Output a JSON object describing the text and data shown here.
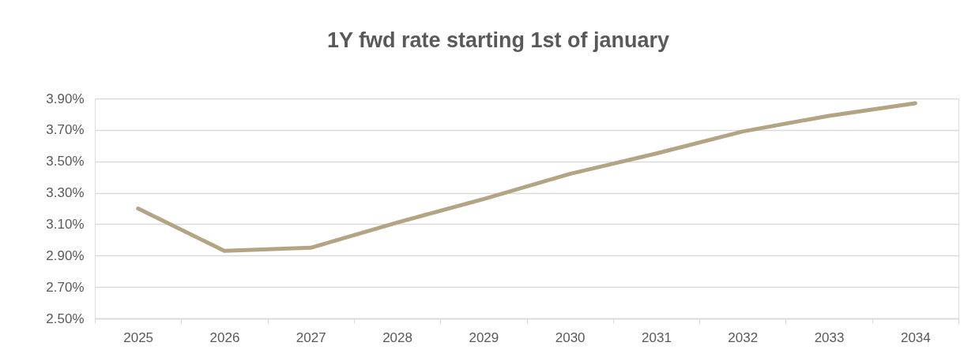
{
  "chart_data": {
    "type": "line",
    "title": "1Y fwd  rate starting 1st of january",
    "categories": [
      "2025",
      "2026",
      "2027",
      "2028",
      "2029",
      "2030",
      "2031",
      "2032",
      "2033",
      "2034"
    ],
    "series": [
      {
        "color": "#b3a584",
        "values": [
          3.2,
          2.93,
          2.95,
          3.11,
          3.26,
          3.42,
          3.55,
          3.69,
          3.79,
          3.87
        ]
      }
    ],
    "ylim": [
      2.5,
      3.9
    ],
    "yticks": [
      {
        "value": 2.5,
        "label": "2.50%"
      },
      {
        "value": 2.7,
        "label": "2.70%"
      },
      {
        "value": 2.9,
        "label": "2.90%"
      },
      {
        "value": 3.1,
        "label": "3.10%"
      },
      {
        "value": 3.3,
        "label": "3.30%"
      },
      {
        "value": 3.5,
        "label": "3.50%"
      },
      {
        "value": 3.7,
        "label": "3.70%"
      },
      {
        "value": 3.9,
        "label": "3.90%"
      }
    ],
    "grid": "y",
    "line_style": "solid"
  }
}
